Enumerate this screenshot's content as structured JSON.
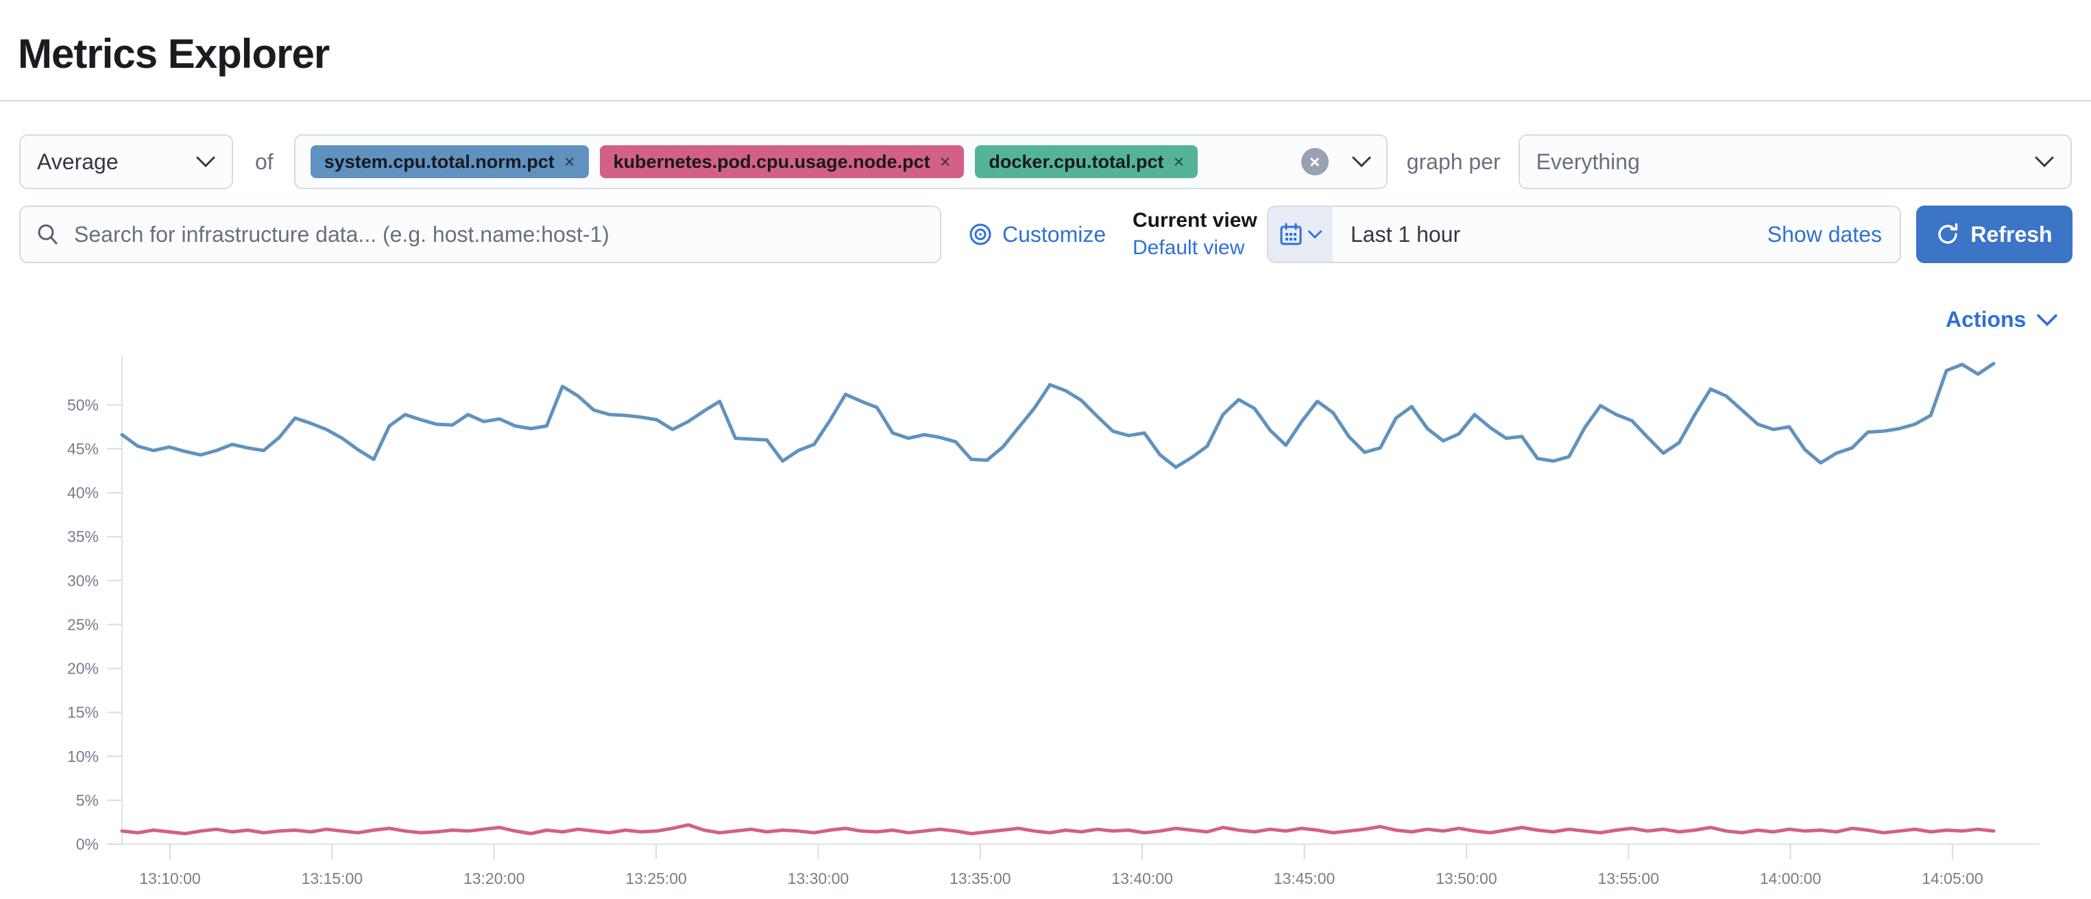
{
  "page": {
    "title": "Metrics Explorer"
  },
  "toolbar": {
    "aggregation": {
      "value": "Average"
    },
    "of_label": "of",
    "metrics": [
      {
        "label": "system.cpu.total.norm.pct",
        "remove_glyph": "×",
        "color": "#6092C0"
      },
      {
        "label": "kubernetes.pod.cpu.usage.node.pct",
        "remove_glyph": "×",
        "color": "#D36086"
      },
      {
        "label": "docker.cpu.total.pct",
        "remove_glyph": "×",
        "color": "#54B399"
      }
    ],
    "clear_glyph": "×",
    "graph_per_label": "graph per",
    "graph_per": {
      "value": "Everything"
    }
  },
  "search": {
    "placeholder": "Search for infrastructure data... (e.g. host.name:host-1)"
  },
  "view_controls": {
    "customize_label": "Customize",
    "current_view_label": "Current view",
    "selected_view": "Default view"
  },
  "time_picker": {
    "value": "Last 1 hour",
    "show_dates_label": "Show dates",
    "refresh_label": "Refresh"
  },
  "actions": {
    "label": "Actions"
  },
  "icons": {
    "search": "magnifier-icon",
    "customize": "bullseye-icon",
    "calendar": "calendar-icon",
    "refresh": "refresh-arrow-icon",
    "clear": "cross-in-circle-icon",
    "chevron": "chevron-down-icon"
  },
  "colors": {
    "link_blue": "#2f70d6",
    "primary_button": "#3c74c6",
    "series_blue": "#6092C0",
    "series_pink": "#D36086",
    "tag_green": "#54B399",
    "axis_text": "#757d8d",
    "border": "#d3dae6"
  },
  "chart_data": {
    "type": "line",
    "title": "",
    "xlabel": "",
    "ylabel": "",
    "units": "%",
    "grid": false,
    "legend": "none",
    "ylim": [
      0,
      55
    ],
    "y_tick_labels": [
      "0%",
      "5%",
      "10%",
      "15%",
      "20%",
      "25%",
      "30%",
      "35%",
      "40%",
      "45%",
      "50%"
    ],
    "x_tick_labels": [
      "13:10:00",
      "13:15:00",
      "13:20:00",
      "13:25:00",
      "13:30:00",
      "13:35:00",
      "13:40:00",
      "13:45:00",
      "13:50:00",
      "13:55:00",
      "14:00:00",
      "14:05:00"
    ],
    "x_range": [
      "13:08:30",
      "14:06:30"
    ],
    "point_interval_seconds": 30,
    "series": [
      {
        "name": "cpu-series-blue",
        "color": "#6092C0",
        "values": [
          46.6,
          45.3,
          44.8,
          45.2,
          44.7,
          44.3,
          44.8,
          45.5,
          45.1,
          44.8,
          46.3,
          48.5,
          47.9,
          47.2,
          46.2,
          44.9,
          43.8,
          47.6,
          48.9,
          48.3,
          47.8,
          47.7,
          48.9,
          48.1,
          48.4,
          47.6,
          47.3,
          47.6,
          52.1,
          51.0,
          49.4,
          48.9,
          48.8,
          48.6,
          48.3,
          47.2,
          48.1,
          49.3,
          50.4,
          46.2,
          46.1,
          46.0,
          43.6,
          44.8,
          45.5,
          48.2,
          51.2,
          50.4,
          49.7,
          46.8,
          46.2,
          46.6,
          46.3,
          45.8,
          43.8,
          43.7,
          45.2,
          47.4,
          49.6,
          52.3,
          51.6,
          50.5,
          48.7,
          47.0,
          46.5,
          46.8,
          44.3,
          42.9,
          44.0,
          45.3,
          48.9,
          50.6,
          49.6,
          47.1,
          45.4,
          48.1,
          50.4,
          49.1,
          46.4,
          44.6,
          45.1,
          48.5,
          49.8,
          47.3,
          45.9,
          46.7,
          48.9,
          47.4,
          46.2,
          46.4,
          43.9,
          43.6,
          44.1,
          47.4,
          49.9,
          48.9,
          48.2,
          46.3,
          44.5,
          45.7,
          48.9,
          51.8,
          51.0,
          49.4,
          47.8,
          47.2,
          47.5,
          44.9,
          43.4,
          44.5,
          45.1,
          46.9,
          47.0,
          47.3,
          47.8,
          48.8,
          53.9,
          54.6,
          53.5,
          54.7
        ]
      },
      {
        "name": "cpu-series-pink",
        "color": "#D36086",
        "values": [
          1.5,
          1.3,
          1.6,
          1.4,
          1.2,
          1.5,
          1.7,
          1.4,
          1.6,
          1.3,
          1.5,
          1.6,
          1.4,
          1.7,
          1.5,
          1.3,
          1.6,
          1.8,
          1.5,
          1.3,
          1.4,
          1.6,
          1.5,
          1.7,
          1.9,
          1.5,
          1.2,
          1.6,
          1.4,
          1.7,
          1.5,
          1.3,
          1.6,
          1.4,
          1.5,
          1.8,
          2.2,
          1.6,
          1.3,
          1.5,
          1.7,
          1.4,
          1.6,
          1.5,
          1.3,
          1.6,
          1.8,
          1.5,
          1.4,
          1.6,
          1.3,
          1.5,
          1.7,
          1.5,
          1.2,
          1.4,
          1.6,
          1.8,
          1.5,
          1.3,
          1.6,
          1.4,
          1.7,
          1.5,
          1.6,
          1.3,
          1.5,
          1.8,
          1.6,
          1.4,
          1.9,
          1.6,
          1.4,
          1.7,
          1.5,
          1.8,
          1.6,
          1.3,
          1.5,
          1.7,
          2.0,
          1.6,
          1.4,
          1.7,
          1.5,
          1.8,
          1.5,
          1.3,
          1.6,
          1.9,
          1.6,
          1.4,
          1.7,
          1.5,
          1.3,
          1.6,
          1.8,
          1.5,
          1.7,
          1.4,
          1.6,
          1.9,
          1.5,
          1.3,
          1.6,
          1.4,
          1.7,
          1.5,
          1.6,
          1.4,
          1.8,
          1.6,
          1.3,
          1.5,
          1.7,
          1.4,
          1.6,
          1.5,
          1.7,
          1.5
        ]
      }
    ]
  }
}
